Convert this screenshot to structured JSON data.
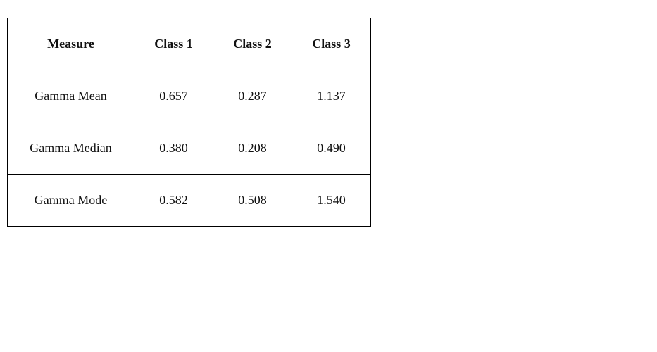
{
  "table": {
    "headers": [
      "Measure",
      "Class 1",
      "Class 2",
      "Class 3"
    ],
    "rows": [
      [
        "Gamma Mean",
        "0.657",
        "0.287",
        "1.137"
      ],
      [
        "Gamma Median",
        "0.380",
        "0.208",
        "0.490"
      ],
      [
        "Gamma Mode",
        "0.582",
        "0.508",
        "1.540"
      ]
    ]
  }
}
